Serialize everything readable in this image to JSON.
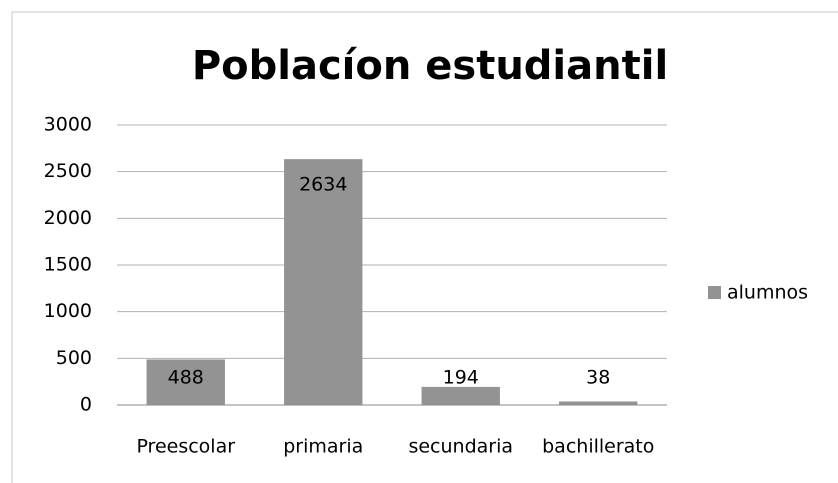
{
  "chart_data": {
    "type": "bar",
    "title": "Poblacíon estudiantil",
    "categories": [
      "Preescolar",
      "primaria",
      "secundaria",
      "bachillerato"
    ],
    "series": [
      {
        "name": "alumnos",
        "color": "#939393",
        "values": [
          488,
          2634,
          194,
          38
        ]
      }
    ],
    "ylim": [
      0,
      3000
    ],
    "yticks": [
      0,
      500,
      1000,
      1500,
      2000,
      2500,
      3000
    ],
    "grid": true,
    "legend": "right",
    "data_labels": true
  }
}
